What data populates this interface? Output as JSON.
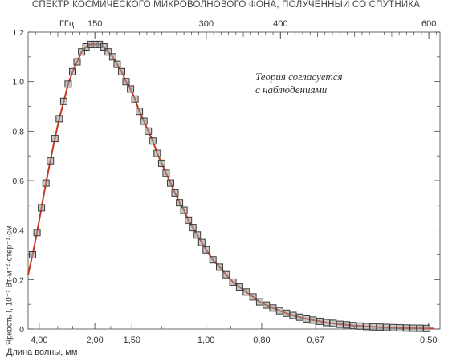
{
  "chart_data": {
    "type": "scatter",
    "title": "СПЕКТР КОСМИЧЕСКОГО МИКРОВОЛНОВОГО ФОНА, ПОЛУЧЕННЫЙ СО СПУТНИКА",
    "xlabel": "Длина волны, мм",
    "ylabel": "Яркость I, 10⁻⁷ Вт·м⁻²·стер⁻¹·см",
    "top_axis_unit": "ГГц",
    "top_ticks": [
      {
        "ghz": 150,
        "label": "150"
      },
      {
        "ghz": 300,
        "label": "300"
      },
      {
        "ghz": 400,
        "label": "400"
      },
      {
        "ghz": 600,
        "label": "600"
      }
    ],
    "bottom_ticks": [
      {
        "mm": 4.0,
        "label": "4,00"
      },
      {
        "mm": 2.0,
        "label": "2,00"
      },
      {
        "mm": 1.5,
        "label": "1,50"
      },
      {
        "mm": 1.0,
        "label": "1,00"
      },
      {
        "mm": 0.8,
        "label": "0,80"
      },
      {
        "mm": 0.67,
        "label": "0,67"
      },
      {
        "mm": 0.5,
        "label": "0,50"
      }
    ],
    "y_ticks": [
      "0",
      "0,2",
      "0,4",
      "0,6",
      "0,8",
      "1,0",
      "1,2"
    ],
    "y_tick_values": [
      0,
      0.2,
      0.4,
      0.6,
      0.8,
      1.0,
      1.2
    ],
    "ylim": [
      0,
      1.2
    ],
    "xlim_ghz": [
      60,
      615
    ],
    "series": [
      {
        "kind": "points",
        "marker": "square",
        "x_ghz": [
          66,
          72,
          78,
          84,
          90,
          96,
          102,
          108,
          114,
          120,
          126,
          132,
          138,
          144,
          150,
          156,
          162,
          168,
          174,
          180,
          186,
          192,
          198,
          204,
          210,
          216,
          222,
          228,
          234,
          240,
          246,
          252,
          258,
          264,
          270,
          276,
          282,
          288,
          294,
          300,
          309,
          318,
          327,
          336,
          345,
          354,
          363,
          372,
          381,
          390,
          399,
          408,
          417,
          426,
          435,
          444,
          453,
          462,
          471,
          480,
          489,
          498,
          507,
          516,
          525,
          534,
          543,
          552,
          561,
          570,
          579,
          588,
          597
        ],
        "y": [
          0.3,
          0.39,
          0.49,
          0.59,
          0.68,
          0.77,
          0.85,
          0.92,
          0.99,
          1.04,
          1.08,
          1.12,
          1.14,
          1.15,
          1.15,
          1.15,
          1.14,
          1.12,
          1.1,
          1.07,
          1.04,
          1.0,
          0.97,
          0.93,
          0.88,
          0.84,
          0.8,
          0.76,
          0.71,
          0.67,
          0.63,
          0.59,
          0.55,
          0.51,
          0.48,
          0.44,
          0.41,
          0.38,
          0.35,
          0.32,
          0.28,
          0.25,
          0.22,
          0.19,
          0.17,
          0.15,
          0.13,
          0.11,
          0.097,
          0.085,
          0.074,
          0.064,
          0.055,
          0.048,
          0.041,
          0.036,
          0.031,
          0.026,
          0.023,
          0.019,
          0.017,
          0.014,
          0.012,
          0.01,
          0.0089,
          0.0076,
          0.0064,
          0.0055,
          0.0047,
          0.004,
          0.0034,
          0.0029,
          0.0024
        ]
      },
      {
        "kind": "line",
        "x_ghz": [
          60,
          66,
          72,
          78,
          84,
          90,
          96,
          102,
          108,
          114,
          120,
          126,
          132,
          138,
          144,
          150,
          156,
          162,
          168,
          174,
          180,
          186,
          192,
          198,
          204,
          210,
          216,
          222,
          228,
          234,
          240,
          246,
          252,
          258,
          264,
          270,
          276,
          282,
          288,
          294,
          300,
          309,
          318,
          327,
          336,
          345,
          354,
          363,
          372,
          381,
          390,
          399,
          408,
          417,
          426,
          435,
          444,
          453,
          462,
          471,
          480,
          489,
          498,
          507,
          516,
          525,
          534,
          543,
          552,
          561,
          570,
          579,
          588,
          597,
          606
        ],
        "y": [
          0.22,
          0.3,
          0.39,
          0.49,
          0.59,
          0.68,
          0.77,
          0.85,
          0.92,
          0.99,
          1.04,
          1.08,
          1.12,
          1.14,
          1.15,
          1.15,
          1.15,
          1.14,
          1.12,
          1.1,
          1.07,
          1.04,
          1.0,
          0.97,
          0.93,
          0.88,
          0.84,
          0.8,
          0.76,
          0.71,
          0.67,
          0.63,
          0.59,
          0.55,
          0.51,
          0.48,
          0.44,
          0.41,
          0.38,
          0.35,
          0.32,
          0.28,
          0.25,
          0.22,
          0.19,
          0.17,
          0.15,
          0.13,
          0.11,
          0.097,
          0.085,
          0.074,
          0.064,
          0.055,
          0.048,
          0.041,
          0.036,
          0.031,
          0.026,
          0.023,
          0.019,
          0.017,
          0.014,
          0.012,
          0.01,
          0.0089,
          0.0076,
          0.0064,
          0.0055,
          0.0047,
          0.004,
          0.0034,
          0.0029,
          0.0024,
          0.002
        ]
      }
    ],
    "annotation": [
      "Теория согласуется",
      "с наблюдениями"
    ],
    "grid": false,
    "colors": {
      "line": "#c8361c",
      "marker_fill": "#9a9a9a",
      "marker_edge": "#3a3a3a",
      "axis": "#444444"
    }
  }
}
